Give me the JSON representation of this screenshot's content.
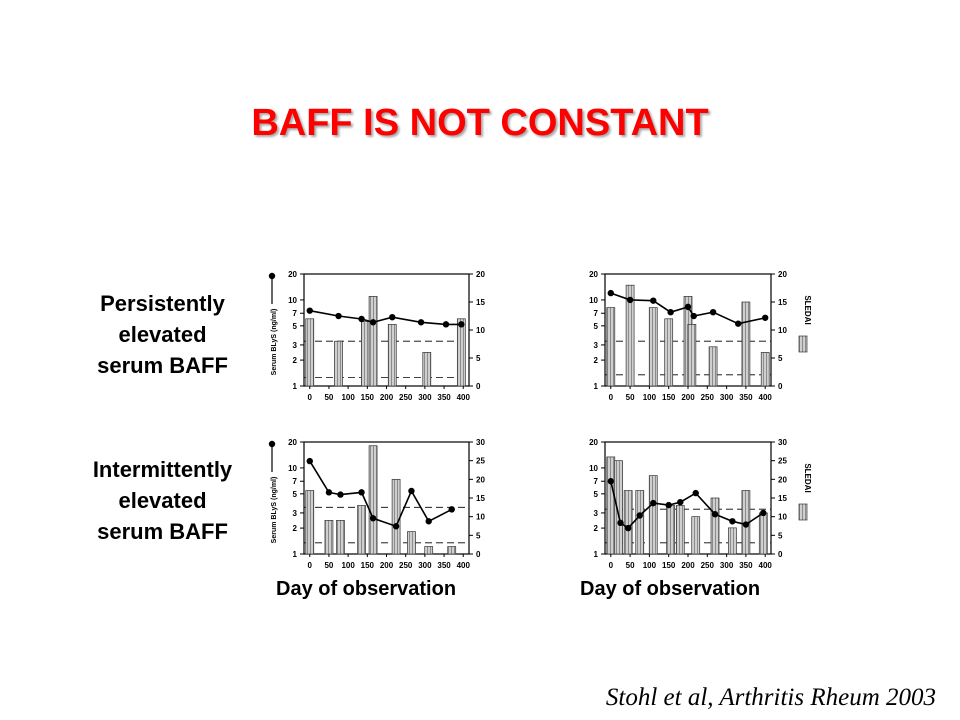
{
  "title": "BAFF IS NOT CONSTANT",
  "row_labels": {
    "row1": [
      "Persistently",
      "elevated",
      "serum BAFF"
    ],
    "row2": [
      "Intermittently",
      "elevated",
      "serum BAFF"
    ]
  },
  "x_axis_title": "Day of observation",
  "citation": "Stohl et al, Arthritis Rheum 2003",
  "colors": {
    "title": "#ff0000",
    "bar_fill": "#cfcfcf"
  },
  "chart_data": [
    {
      "type": "bar",
      "panel": "top-left",
      "left_axis_label": "Serum BLyS (ng/ml)",
      "left_axis_scale": "log",
      "left_ticks": [
        1,
        2,
        3,
        5,
        7,
        10,
        20
      ],
      "right_ticks": [
        0,
        5,
        10,
        15,
        20
      ],
      "right_axis_label": "",
      "x_ticks": [
        0,
        50,
        100,
        150,
        200,
        250,
        300,
        350,
        400
      ],
      "xlim": [
        -15,
        415
      ],
      "ylim_left": [
        1,
        20
      ],
      "ylim_right": [
        0,
        20
      ],
      "thresholds_right": [
        1.5,
        8
      ],
      "bars": [
        {
          "day": 0,
          "value": 12
        },
        {
          "day": 75,
          "value": 8
        },
        {
          "day": 145,
          "value": 11.5
        },
        {
          "day": 165,
          "value": 16
        },
        {
          "day": 215,
          "value": 11
        },
        {
          "day": 305,
          "value": 6
        },
        {
          "day": 395,
          "value": 12
        }
      ],
      "line": [
        {
          "day": 0,
          "value": 7.5
        },
        {
          "day": 75,
          "value": 6.5
        },
        {
          "day": 135,
          "value": 6.0
        },
        {
          "day": 165,
          "value": 5.5
        },
        {
          "day": 215,
          "value": 6.3
        },
        {
          "day": 290,
          "value": 5.5
        },
        {
          "day": 355,
          "value": 5.2
        },
        {
          "day": 395,
          "value": 5.2
        }
      ]
    },
    {
      "type": "bar",
      "panel": "top-right",
      "left_axis_label": "",
      "left_axis_scale": "log",
      "left_ticks": [
        1,
        2,
        3,
        5,
        7,
        10,
        20
      ],
      "right_ticks": [
        0,
        5,
        10,
        15,
        20
      ],
      "right_axis_label": "SLEDAI",
      "x_ticks": [
        0,
        50,
        100,
        150,
        200,
        250,
        300,
        350,
        400
      ],
      "xlim": [
        -15,
        415
      ],
      "ylim_left": [
        1,
        20
      ],
      "ylim_right": [
        0,
        20
      ],
      "thresholds_right": [
        2,
        8
      ],
      "bars": [
        {
          "day": 0,
          "value": 14
        },
        {
          "day": 50,
          "value": 18
        },
        {
          "day": 110,
          "value": 14
        },
        {
          "day": 150,
          "value": 12
        },
        {
          "day": 200,
          "value": 16
        },
        {
          "day": 210,
          "value": 11
        },
        {
          "day": 265,
          "value": 7
        },
        {
          "day": 350,
          "value": 15
        },
        {
          "day": 400,
          "value": 6
        }
      ],
      "line": [
        {
          "day": 0,
          "value": 12
        },
        {
          "day": 50,
          "value": 10
        },
        {
          "day": 110,
          "value": 9.8
        },
        {
          "day": 155,
          "value": 7.2
        },
        {
          "day": 200,
          "value": 8.3
        },
        {
          "day": 215,
          "value": 6.5
        },
        {
          "day": 265,
          "value": 7.2
        },
        {
          "day": 330,
          "value": 5.3
        },
        {
          "day": 400,
          "value": 6.2
        }
      ]
    },
    {
      "type": "bar",
      "panel": "bottom-left",
      "left_axis_label": "Serum BLyS (ng/ml)",
      "left_axis_scale": "log",
      "left_ticks": [
        1,
        2,
        3,
        5,
        7,
        10,
        20
      ],
      "right_ticks": [
        0,
        5,
        10,
        15,
        20,
        25,
        30
      ],
      "right_axis_label": "",
      "x_ticks": [
        0,
        50,
        100,
        150,
        200,
        250,
        300,
        350,
        400
      ],
      "xlim": [
        -15,
        415
      ],
      "ylim_left": [
        1,
        20
      ],
      "ylim_right": [
        0,
        30
      ],
      "thresholds_right": [
        3,
        12.5
      ],
      "bars": [
        {
          "day": 0,
          "value": 17
        },
        {
          "day": 50,
          "value": 9
        },
        {
          "day": 80,
          "value": 9
        },
        {
          "day": 135,
          "value": 13
        },
        {
          "day": 165,
          "value": 29
        },
        {
          "day": 225,
          "value": 20
        },
        {
          "day": 265,
          "value": 6
        },
        {
          "day": 310,
          "value": 2
        },
        {
          "day": 370,
          "value": 2
        }
      ],
      "line": [
        {
          "day": 0,
          "value": 12
        },
        {
          "day": 50,
          "value": 5.2
        },
        {
          "day": 80,
          "value": 4.9
        },
        {
          "day": 135,
          "value": 5.2
        },
        {
          "day": 165,
          "value": 2.6
        },
        {
          "day": 225,
          "value": 2.1
        },
        {
          "day": 265,
          "value": 5.4
        },
        {
          "day": 310,
          "value": 2.4
        },
        {
          "day": 370,
          "value": 3.3
        }
      ]
    },
    {
      "type": "bar",
      "panel": "bottom-right",
      "left_axis_label": "",
      "left_axis_scale": "log",
      "left_ticks": [
        1,
        2,
        3,
        5,
        7,
        10,
        20
      ],
      "right_ticks": [
        0,
        5,
        10,
        15,
        20,
        25,
        30
      ],
      "right_axis_label": "SLEDAI",
      "x_ticks": [
        0,
        50,
        100,
        150,
        200,
        250,
        300,
        350,
        400
      ],
      "xlim": [
        -15,
        415
      ],
      "ylim_left": [
        1,
        20
      ],
      "ylim_right": [
        0,
        30
      ],
      "thresholds_right": [
        3,
        12
      ],
      "bars": [
        {
          "day": 0,
          "value": 26
        },
        {
          "day": 20,
          "value": 25
        },
        {
          "day": 45,
          "value": 17
        },
        {
          "day": 75,
          "value": 17
        },
        {
          "day": 110,
          "value": 21
        },
        {
          "day": 155,
          "value": 13
        },
        {
          "day": 180,
          "value": 13
        },
        {
          "day": 220,
          "value": 10
        },
        {
          "day": 270,
          "value": 15
        },
        {
          "day": 315,
          "value": 7
        },
        {
          "day": 350,
          "value": 17
        },
        {
          "day": 395,
          "value": 11
        }
      ],
      "line": [
        {
          "day": 0,
          "value": 7
        },
        {
          "day": 25,
          "value": 2.3
        },
        {
          "day": 45,
          "value": 2.0
        },
        {
          "day": 75,
          "value": 2.8
        },
        {
          "day": 110,
          "value": 3.9
        },
        {
          "day": 150,
          "value": 3.7
        },
        {
          "day": 180,
          "value": 4.0
        },
        {
          "day": 220,
          "value": 5.1
        },
        {
          "day": 270,
          "value": 2.9
        },
        {
          "day": 315,
          "value": 2.4
        },
        {
          "day": 350,
          "value": 2.2
        },
        {
          "day": 395,
          "value": 3.0
        }
      ]
    }
  ]
}
